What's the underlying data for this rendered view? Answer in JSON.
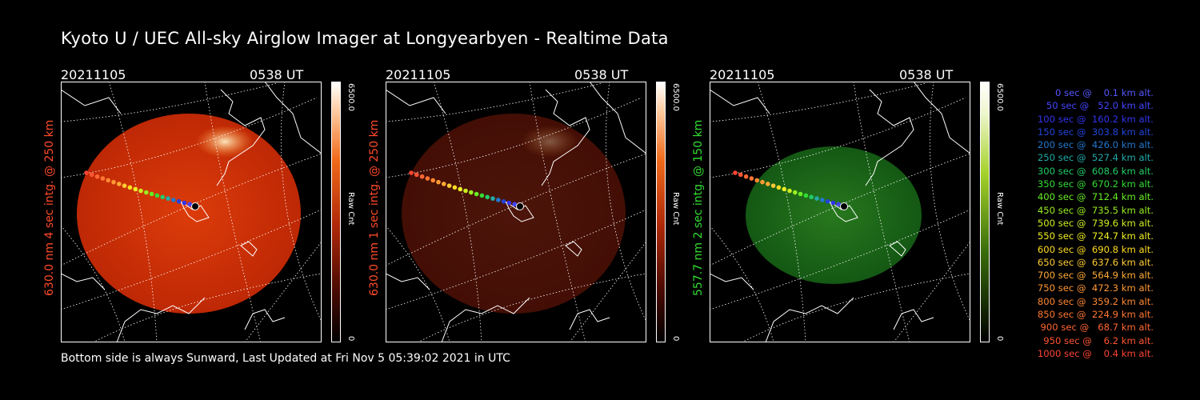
{
  "title": "Kyoto U / UEC All-sky Airglow Imager at Longyearbyen - Realtime Data",
  "footer": "Bottom side is always Sunward, Last Updated at Fri Nov  5 05:39:02 2021 in UTC",
  "panels": [
    {
      "date": "20211105",
      "time": "0538 UT",
      "side_label": "630.0 nm 4 sec intg. @ 250 km",
      "label_color": "#ff4a2a",
      "colorbar_max": "6500.0",
      "colorbar_min": "0",
      "colorbar_label": "Raw Cnt",
      "brightness": 1.0,
      "tint": "red"
    },
    {
      "date": "20211105",
      "time": "0538 UT",
      "side_label": "630.0 nm 1 sec intg. @ 250 km",
      "label_color": "#ff4a2a",
      "colorbar_max": "6500.0",
      "colorbar_min": "0",
      "colorbar_label": "Raw Cnt",
      "brightness": 0.35,
      "tint": "red"
    },
    {
      "date": "20211105",
      "time": "0538 UT",
      "side_label": "557.7 nm 2 sec intg. @ 150 km",
      "label_color": "#33dd33",
      "colorbar_max": "6500.0",
      "colorbar_min": "0",
      "colorbar_label": "Raw Cnt",
      "brightness": 0.5,
      "tint": "green"
    }
  ],
  "legend": [
    {
      "text": "0 sec @    0.1 km alt.",
      "color": "#5555ff"
    },
    {
      "text": "50 sec @   52.0 km alt.",
      "color": "#4444ff"
    },
    {
      "text": "100 sec @  160.2 km alt.",
      "color": "#3333ee"
    },
    {
      "text": "150 sec @  303.8 km alt.",
      "color": "#2244dd"
    },
    {
      "text": "200 sec @  426.0 km alt.",
      "color": "#2277cc"
    },
    {
      "text": "250 sec @  527.4 km alt.",
      "color": "#22aaaa"
    },
    {
      "text": "300 sec @  608.6 km alt.",
      "color": "#22cc66"
    },
    {
      "text": "350 sec @  670.2 km alt.",
      "color": "#33dd33"
    },
    {
      "text": "400 sec @  712.4 km alt.",
      "color": "#66ee22"
    },
    {
      "text": "450 sec @  735.5 km alt.",
      "color": "#99ee22"
    },
    {
      "text": "500 sec @  739.6 km alt.",
      "color": "#ccee22"
    },
    {
      "text": "550 sec @  724.7 km alt.",
      "color": "#eeee22"
    },
    {
      "text": "600 sec @  690.8 km alt.",
      "color": "#ffdd22"
    },
    {
      "text": "650 sec @  637.6 km alt.",
      "color": "#ffcc33"
    },
    {
      "text": "700 sec @  564.9 km alt.",
      "color": "#ffaa33"
    },
    {
      "text": "750 sec @  472.3 km alt.",
      "color": "#ff9933"
    },
    {
      "text": "800 sec @  359.2 km alt.",
      "color": "#ff8833"
    },
    {
      "text": "850 sec @  224.9 km alt.",
      "color": "#ff7733"
    },
    {
      "text": "900 sec @   68.7 km alt.",
      "color": "#ff6633"
    },
    {
      "text": "950 sec @    6.2 km alt.",
      "color": "#ff5533"
    },
    {
      "text": "1000 sec @    0.4 km alt.",
      "color": "#ff4433"
    }
  ]
}
